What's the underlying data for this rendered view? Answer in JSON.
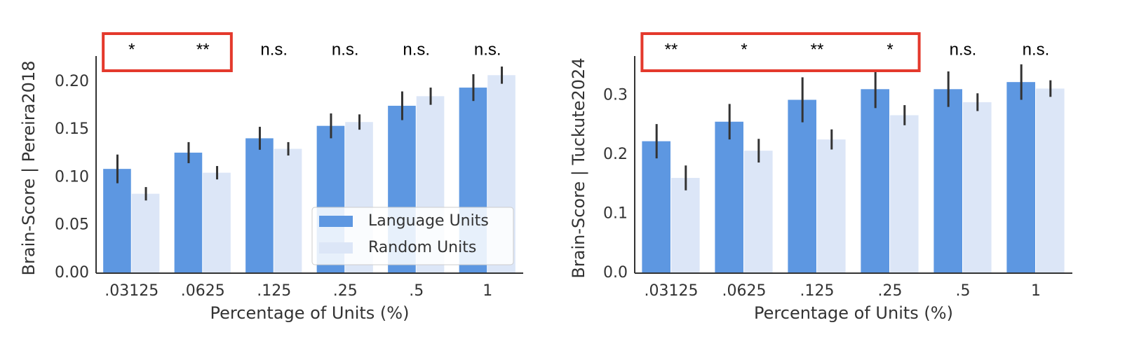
{
  "chart_data": [
    {
      "type": "bar",
      "categories": [
        ".03125",
        ".0625",
        ".125",
        ".25",
        ".5",
        "1"
      ],
      "series": [
        {
          "name": "Language Units",
          "color": "#5d97e1",
          "values": [
            0.109,
            0.126,
            0.141,
            0.154,
            0.175,
            0.194
          ],
          "errors": [
            0.015,
            0.011,
            0.012,
            0.013,
            0.015,
            0.014
          ]
        },
        {
          "name": "Random Units",
          "color": "#dce6f7",
          "values": [
            0.083,
            0.105,
            0.13,
            0.158,
            0.185,
            0.207
          ],
          "errors": [
            0.007,
            0.007,
            0.007,
            0.008,
            0.009,
            0.009
          ]
        }
      ],
      "x_label": "Percentage of Units (%)",
      "y_label": "Brain-Score | Pereira2018",
      "ylim": [
        0,
        0.227
      ],
      "yticks": [
        {
          "value": 0,
          "label": "0.00"
        },
        {
          "value": 0.05,
          "label": "0.05"
        },
        {
          "value": 0.1,
          "label": "0.10"
        },
        {
          "value": 0.15,
          "label": "0.15"
        },
        {
          "value": 0.2,
          "label": "0.20"
        }
      ],
      "annotations": [
        "*",
        "**",
        "n.s.",
        "n.s.",
        "n.s.",
        "n.s."
      ],
      "highlight": {
        "categories": [
          ".03125",
          ".0625"
        ],
        "color": "#e4392c"
      },
      "legend": "lower right"
    },
    {
      "type": "bar",
      "categories": [
        ".03125",
        ".0625",
        ".125",
        ".25",
        ".5",
        "1"
      ],
      "series": [
        {
          "name": "Language Units",
          "color": "#5d97e1",
          "values": [
            0.223,
            0.256,
            0.293,
            0.311,
            0.311,
            0.323
          ],
          "errors": [
            0.029,
            0.03,
            0.038,
            0.032,
            0.03,
            0.03
          ]
        },
        {
          "name": "Random Units",
          "color": "#dce6f7",
          "values": [
            0.161,
            0.207,
            0.226,
            0.267,
            0.289,
            0.312
          ],
          "errors": [
            0.021,
            0.02,
            0.017,
            0.017,
            0.015,
            0.014
          ]
        }
      ],
      "x_label": "Percentage of Units (%)",
      "y_label": "Brain-Score | Tuckute2024",
      "ylim": [
        0,
        0.367
      ],
      "yticks": [
        {
          "value": 0,
          "label": "0.0"
        },
        {
          "value": 0.1,
          "label": "0.1"
        },
        {
          "value": 0.2,
          "label": "0.2"
        },
        0.3
      ],
      "annotations": [
        "**",
        "*",
        "**",
        "*",
        "n.s.",
        "n.s."
      ],
      "highlight": {
        "categories": [
          ".03125",
          ".0625",
          ".125",
          ".25"
        ],
        "color": "#e4392c"
      }
    }
  ]
}
